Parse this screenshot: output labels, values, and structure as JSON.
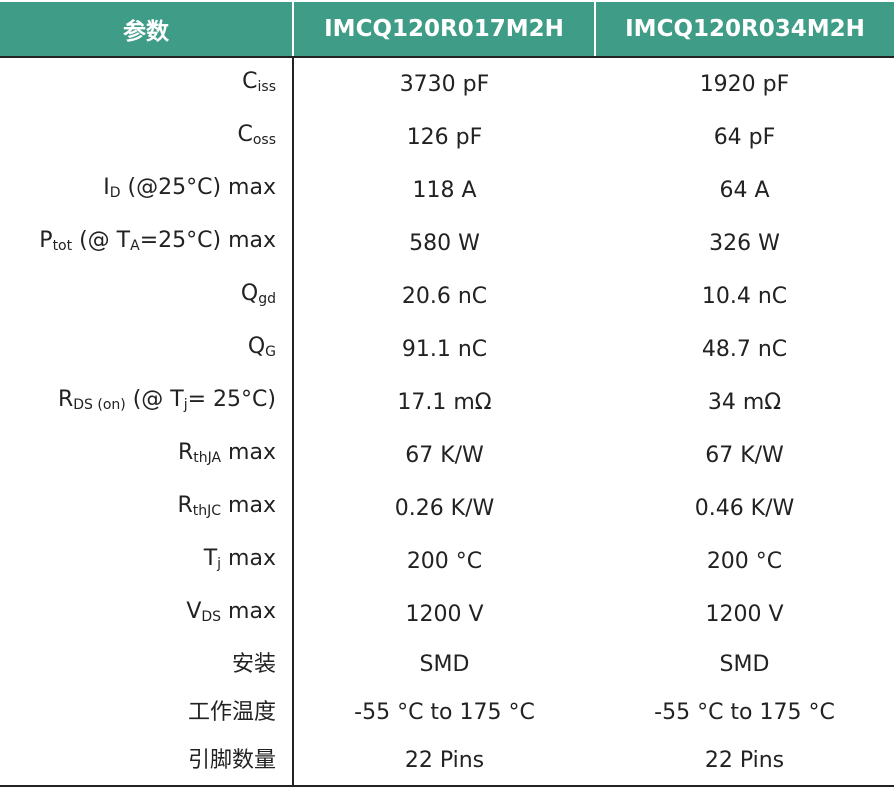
{
  "table": {
    "header": [
      "参数",
      "IMCQ120R017M2H",
      "IMCQ120R034M2H"
    ],
    "rows": [
      {
        "param": [
          {
            "t": "C"
          },
          {
            "sub": "iss"
          }
        ],
        "values": [
          "3730 pF",
          "1920 pF"
        ]
      },
      {
        "param": [
          {
            "t": "C"
          },
          {
            "sub": "oss"
          }
        ],
        "values": [
          "126 pF",
          "64 pF"
        ]
      },
      {
        "param": [
          {
            "t": "I"
          },
          {
            "sub": "D"
          },
          {
            "t": " (@25°C) max"
          }
        ],
        "values": [
          "118 A",
          "64 A"
        ]
      },
      {
        "param": [
          {
            "t": "P"
          },
          {
            "sub": "tot"
          },
          {
            "t": " (@ T"
          },
          {
            "sub": "A"
          },
          {
            "t": "=25°C) max"
          }
        ],
        "values": [
          "580 W",
          "326 W"
        ]
      },
      {
        "param": [
          {
            "t": "Q"
          },
          {
            "sub": "gd"
          }
        ],
        "values": [
          "20.6 nC",
          "10.4 nC"
        ]
      },
      {
        "param": [
          {
            "t": "Q"
          },
          {
            "sub": "G"
          }
        ],
        "values": [
          "91.1 nC",
          "48.7 nC"
        ]
      },
      {
        "param": [
          {
            "t": "R"
          },
          {
            "sub": "DS (on)"
          },
          {
            "t": " (@ T"
          },
          {
            "sub": "j"
          },
          {
            "t": "= 25°C)"
          }
        ],
        "values": [
          "17.1 mΩ",
          "34 mΩ"
        ]
      },
      {
        "param": [
          {
            "t": "R"
          },
          {
            "sub": "thJA"
          },
          {
            "t": " max"
          }
        ],
        "values": [
          "67 K/W",
          "67 K/W"
        ]
      },
      {
        "param": [
          {
            "t": "R"
          },
          {
            "sub": "thJC"
          },
          {
            "t": " max"
          }
        ],
        "values": [
          "0.26 K/W",
          "0.46 K/W"
        ]
      },
      {
        "param": [
          {
            "t": "T"
          },
          {
            "sub": "j"
          },
          {
            "t": " max"
          }
        ],
        "values": [
          "200 °C",
          "200 °C"
        ]
      },
      {
        "param": [
          {
            "t": "V"
          },
          {
            "sub": "DS"
          },
          {
            "t": " max"
          }
        ],
        "values": [
          "1200 V",
          "1200 V"
        ]
      },
      {
        "param": [
          {
            "t": "安装"
          }
        ],
        "values": [
          "SMD",
          "SMD"
        ]
      },
      {
        "param": [
          {
            "t": "工作温度"
          }
        ],
        "values": [
          "-55 °C to 175 °C",
          "-55 °C to 175 °C"
        ]
      },
      {
        "param": [
          {
            "t": "引脚数量"
          }
        ],
        "values": [
          "22 Pins",
          "22 Pins"
        ]
      }
    ]
  }
}
